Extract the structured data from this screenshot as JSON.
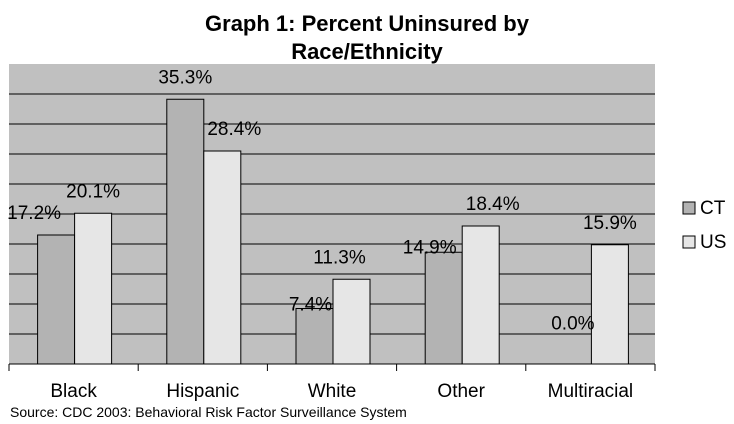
{
  "chart_data": {
    "type": "bar",
    "title": "Graph 1: Percent Uninsured by Race/Ethnicity",
    "title_lines": [
      "Graph 1: Percent Uninsured by",
      "Race/Ethnicity"
    ],
    "categories": [
      "Black",
      "Hispanic",
      "White",
      "Other",
      "Multiracial"
    ],
    "series": [
      {
        "name": "CT",
        "values": [
          17.2,
          35.3,
          7.4,
          14.9,
          0.0
        ],
        "labels": [
          "17.2%",
          "35.3%",
          "7.4%",
          "14.9%",
          "0.0%"
        ],
        "color": "#b3b3b3"
      },
      {
        "name": "US",
        "values": [
          20.1,
          28.4,
          11.3,
          18.4,
          15.9
        ],
        "labels": [
          "20.1%",
          "28.4%",
          "11.3%",
          "18.4%",
          "15.9%"
        ],
        "color": "#e6e6e6"
      }
    ],
    "ylim": [
      0,
      40
    ],
    "grid": true,
    "legend_position": "right",
    "source": "Source: CDC 2003: Behavioral Risk Factor Surveillance System",
    "plot_background": "#c0c0c0"
  }
}
